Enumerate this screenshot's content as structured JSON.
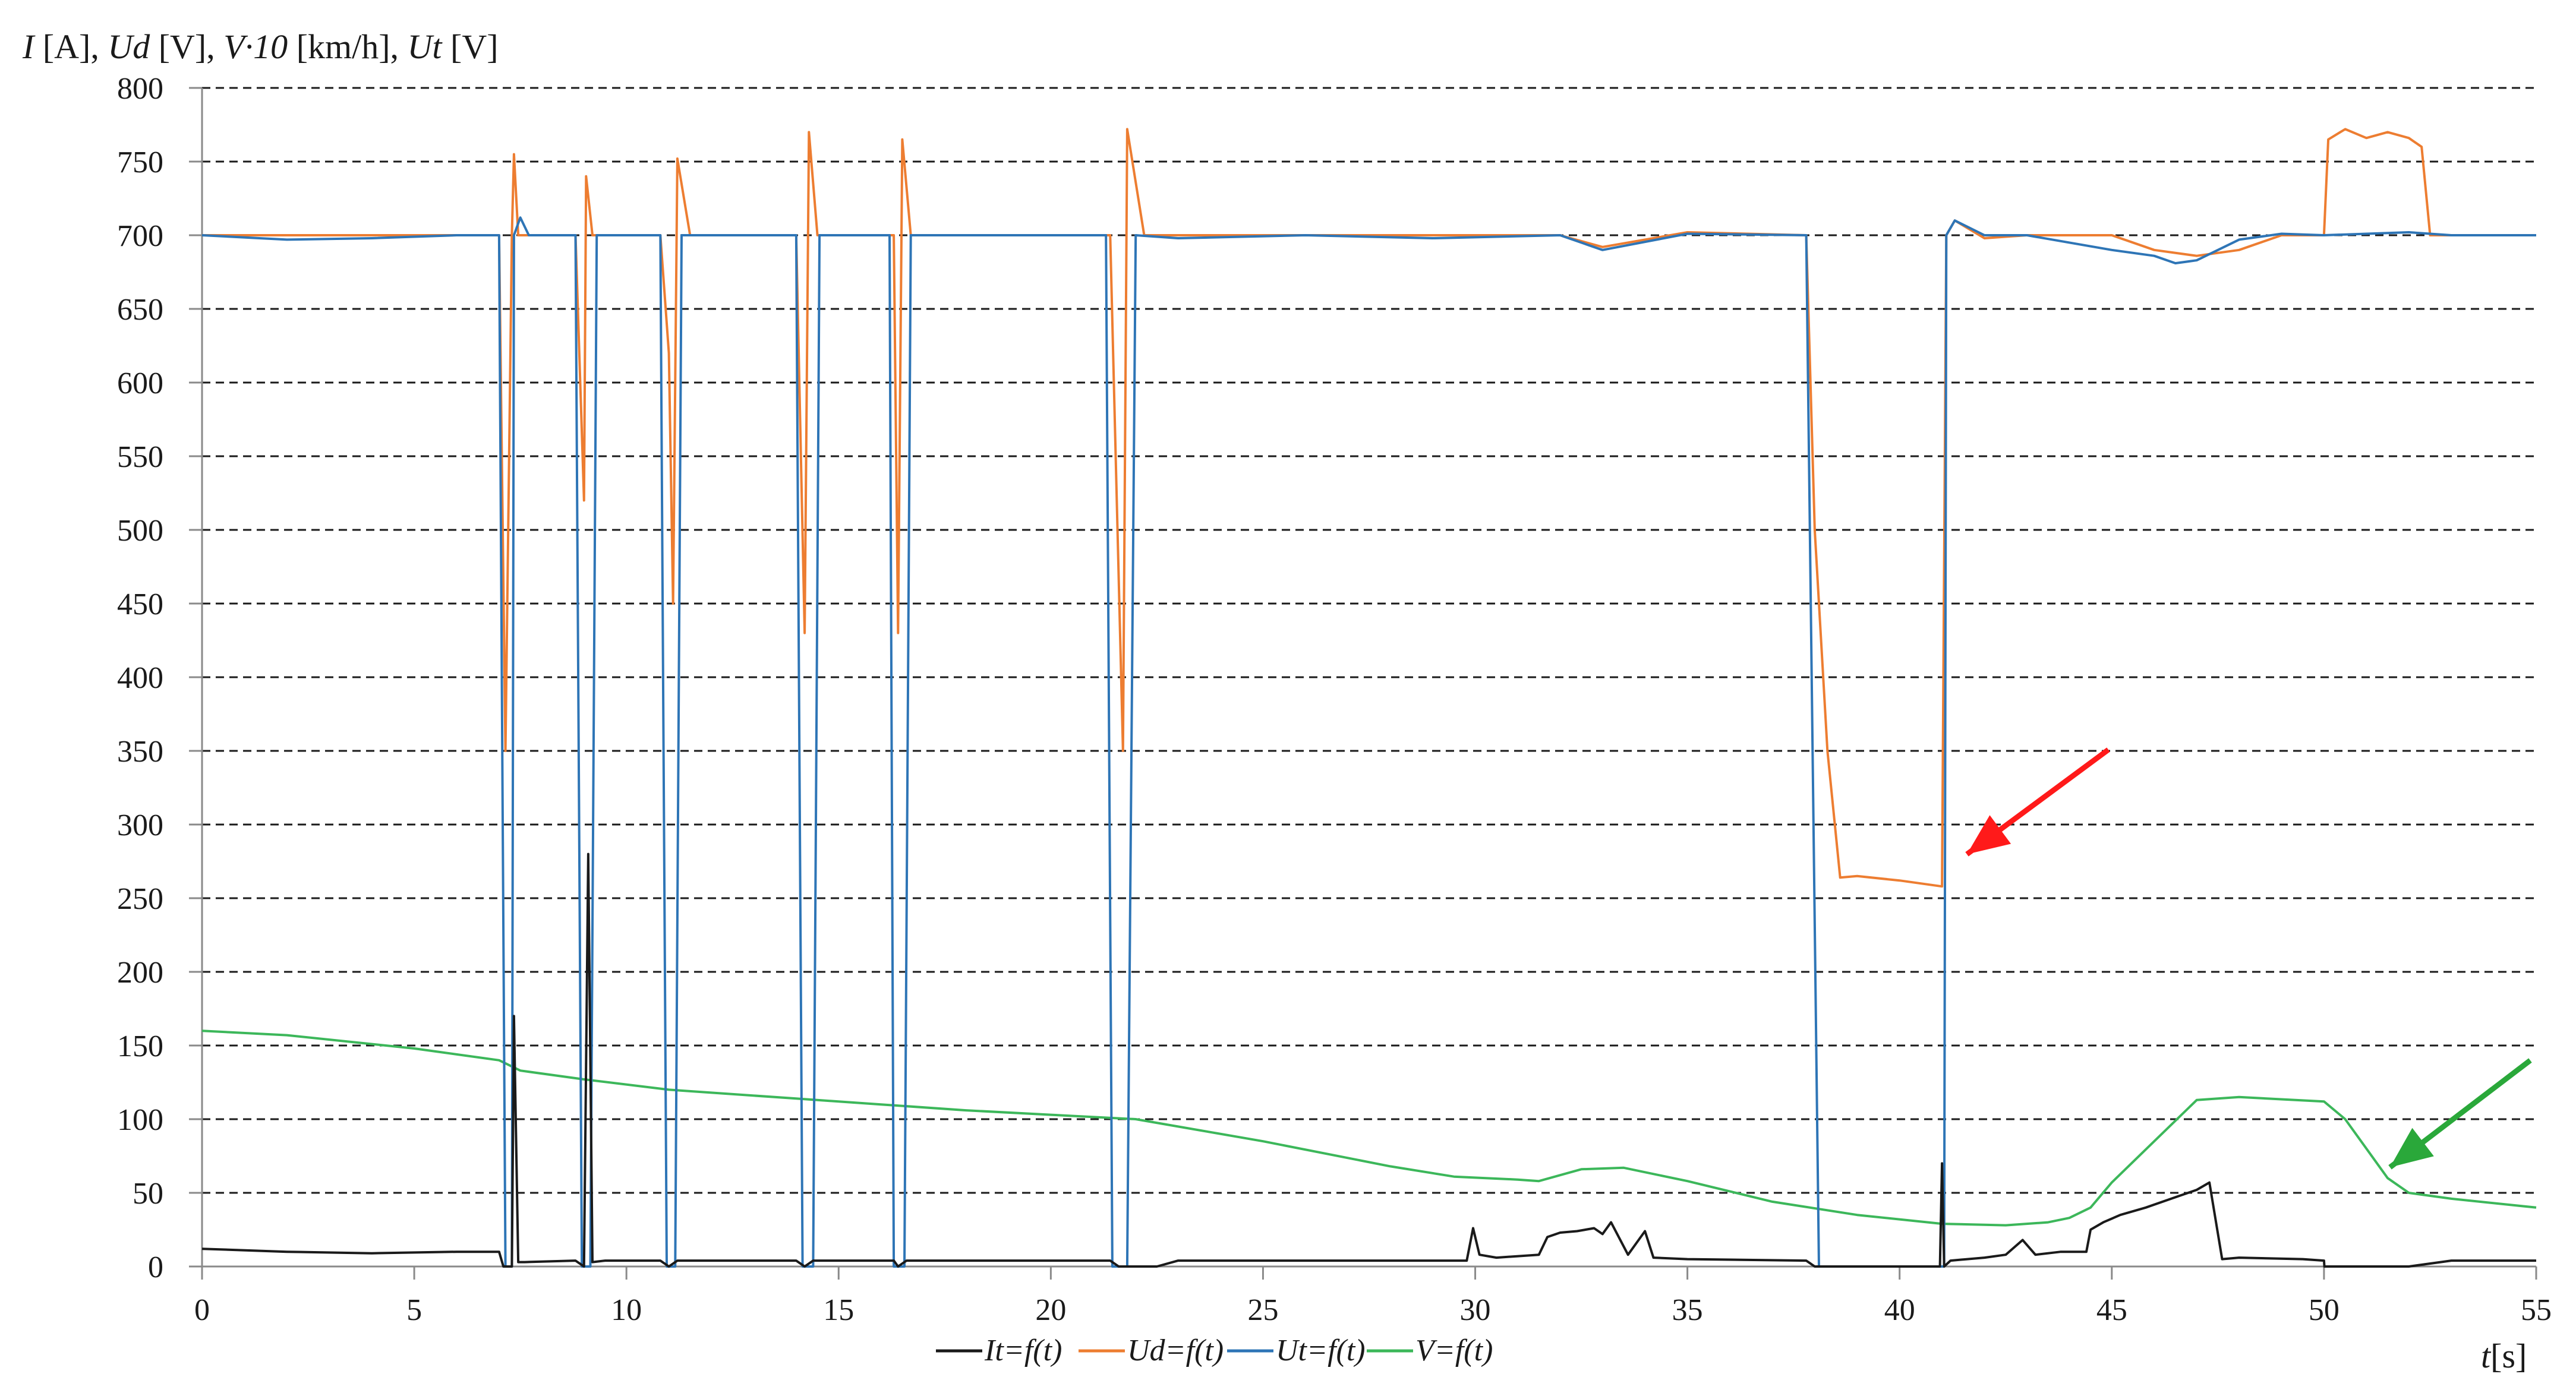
{
  "chart_data": {
    "type": "line",
    "ylabel": {
      "parts": [
        {
          "text": "I",
          "italic": true
        },
        {
          "text": " [A], ",
          "italic": false
        },
        {
          "text": "Ud",
          "italic": true
        },
        {
          "text": " [V], ",
          "italic": false
        },
        {
          "text": "V·10",
          "italic": true
        },
        {
          "text": " [km/h], ",
          "italic": false
        },
        {
          "text": "Ut",
          "italic": true
        },
        {
          "text": " [V]",
          "italic": false
        }
      ]
    },
    "xlabel": {
      "parts": [
        {
          "text": "t",
          "italic": true
        },
        {
          "text": "[s]",
          "italic": false
        }
      ]
    },
    "xlim": [
      0,
      55
    ],
    "ylim": [
      0,
      800
    ],
    "xticks": [
      0,
      5,
      10,
      15,
      20,
      25,
      30,
      35,
      40,
      45,
      50,
      55
    ],
    "yticks": [
      0,
      50,
      100,
      150,
      200,
      250,
      300,
      350,
      400,
      450,
      500,
      550,
      600,
      650,
      700,
      750,
      800
    ],
    "grid": "horizontal dashed",
    "legend_position": "bottom",
    "series": [
      {
        "name": "It=f(t)",
        "color": "#1a1a1a",
        "x": [
          0,
          2,
          4,
          6,
          7.0,
          7.1,
          7.3,
          7.35,
          7.45,
          7.6,
          8.8,
          9.0,
          9.1,
          9.2,
          9.5,
          10.8,
          11.0,
          11.2,
          12,
          14.0,
          14.2,
          14.4,
          15,
          16.3,
          16.4,
          16.6,
          18,
          21.4,
          21.6,
          21.8,
          22.5,
          23,
          26,
          29,
          29.8,
          29.95,
          30.1,
          30.5,
          31.5,
          31.7,
          32.0,
          32.4,
          32.8,
          33.0,
          33.2,
          33.6,
          34.0,
          34.2,
          35,
          37.8,
          38.0,
          40.8,
          40.95,
          41.0,
          41.05,
          41.2,
          42,
          42.5,
          42.9,
          43.2,
          43.8,
          44.4,
          44.5,
          44.8,
          45.2,
          45.8,
          46.5,
          47.0,
          47.3,
          47.6,
          48,
          49.5,
          50.0,
          50.01,
          52.0,
          53,
          55
        ],
        "y": [
          12,
          10,
          9,
          10,
          10,
          0,
          0,
          170,
          3,
          3,
          4,
          0,
          280,
          3,
          4,
          4,
          0,
          4,
          4,
          4,
          0,
          4,
          4,
          4,
          0,
          4,
          4,
          4,
          0,
          0,
          0,
          4,
          4,
          4,
          4,
          26,
          8,
          6,
          8,
          20,
          23,
          24,
          26,
          22,
          30,
          8,
          24,
          6,
          5,
          4,
          0,
          0,
          0,
          70,
          0,
          4,
          6,
          8,
          18,
          8,
          10,
          10,
          25,
          30,
          35,
          40,
          47,
          52,
          57,
          5,
          6,
          5,
          4,
          0,
          0,
          4,
          4
        ]
      },
      {
        "name": "Ud=f(t)",
        "color": "#ed7d31",
        "x": [
          0,
          2,
          4,
          6,
          7.0,
          7.15,
          7.3,
          7.35,
          7.45,
          7.6,
          8.8,
          9.0,
          9.05,
          9.2,
          9.5,
          10.8,
          11.0,
          11.1,
          11.2,
          11.5,
          14.0,
          14.2,
          14.3,
          14.5,
          16.3,
          16.4,
          16.5,
          16.7,
          21.4,
          21.7,
          21.8,
          22.2,
          23,
          26,
          29,
          32,
          33,
          35,
          37.8,
          38.0,
          38.3,
          38.6,
          39.0,
          40,
          41.0,
          41.1,
          41.3,
          42,
          43,
          45,
          46,
          47,
          48,
          49,
          50.0,
          50.1,
          50.5,
          51,
          51.5,
          52.0,
          52.3,
          52.5,
          53,
          54,
          55
        ],
        "y": [
          700,
          700,
          700,
          700,
          700,
          350,
          700,
          755,
          700,
          700,
          700,
          520,
          740,
          700,
          700,
          700,
          620,
          450,
          752,
          700,
          700,
          430,
          770,
          700,
          700,
          430,
          765,
          700,
          700,
          350,
          772,
          700,
          700,
          700,
          700,
          700,
          692,
          702,
          700,
          500,
          350,
          264,
          265,
          262,
          258,
          700,
          710,
          698,
          700,
          700,
          690,
          686,
          690,
          700,
          700,
          765,
          772,
          766,
          770,
          766,
          760,
          700,
          700,
          700,
          700
        ]
      },
      {
        "name": "Ut=f(t)",
        "color": "#2e75b6",
        "x": [
          0,
          2,
          4,
          6,
          7.0,
          7.15,
          7.3,
          7.35,
          7.5,
          7.7,
          8.8,
          8.95,
          9.15,
          9.3,
          10.8,
          10.95,
          11.15,
          11.3,
          14.0,
          14.15,
          14.4,
          14.55,
          16.2,
          16.3,
          16.55,
          16.7,
          21.3,
          21.45,
          21.8,
          22.0,
          23,
          26,
          29,
          32,
          33,
          35,
          37.8,
          38.1,
          38.15,
          40.9,
          41.05,
          41.1,
          41.3,
          42,
          43,
          45,
          46,
          46.5,
          47,
          48,
          49,
          50,
          52,
          53,
          55
        ],
        "y": [
          700,
          697,
          698,
          700,
          700,
          0,
          0,
          700,
          712,
          700,
          700,
          0,
          0,
          700,
          700,
          0,
          0,
          700,
          700,
          0,
          0,
          700,
          700,
          0,
          0,
          700,
          700,
          0,
          0,
          700,
          698,
          700,
          698,
          700,
          690,
          701,
          700,
          0,
          0,
          0,
          0,
          700,
          710,
          700,
          700,
          690,
          686,
          681,
          683,
          697,
          701,
          700,
          702,
          700,
          700
        ]
      },
      {
        "name": "V=f(t)",
        "color": "#3cb75a",
        "x": [
          0,
          2,
          5,
          7.0,
          7.5,
          9,
          11,
          14,
          16,
          18,
          20,
          22,
          25,
          28,
          29.5,
          31,
          31.5,
          32.5,
          33.5,
          35,
          37,
          39,
          41,
          42.5,
          43.5,
          44,
          44.5,
          45,
          46,
          47,
          48,
          50,
          50.5,
          51,
          51.5,
          52,
          53,
          55
        ],
        "y": [
          160,
          157,
          148,
          140,
          133,
          127,
          120,
          114,
          110,
          106,
          103,
          100,
          85,
          68,
          61,
          59,
          58,
          66,
          67,
          58,
          44,
          35,
          29,
          28,
          30,
          33,
          40,
          57,
          85,
          113,
          115,
          112,
          100,
          80,
          60,
          50,
          46,
          40
        ]
      }
    ]
  }
}
